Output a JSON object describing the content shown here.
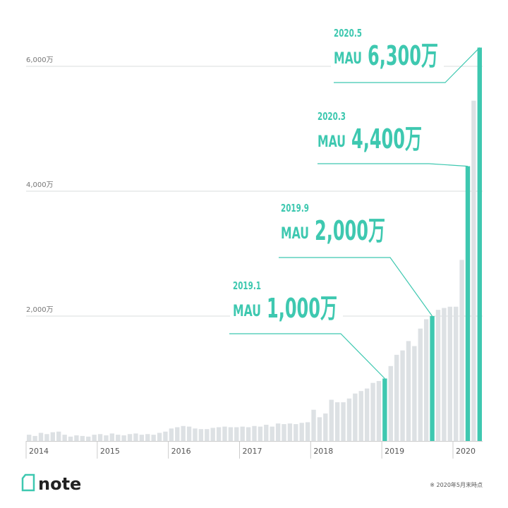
{
  "chart_data": {
    "type": "bar",
    "categories": [
      "2014",
      null,
      null,
      null,
      null,
      null,
      null,
      null,
      null,
      null,
      null,
      null,
      "2015",
      null,
      null,
      null,
      null,
      null,
      null,
      null,
      null,
      null,
      null,
      null,
      "2016",
      null,
      null,
      null,
      null,
      null,
      null,
      null,
      null,
      null,
      null,
      null,
      "2017",
      null,
      null,
      null,
      null,
      null,
      null,
      null,
      null,
      null,
      null,
      null,
      "2018",
      null,
      null,
      null,
      null,
      null,
      null,
      null,
      null,
      null,
      null,
      null,
      "2019",
      null,
      null,
      null,
      null,
      null,
      null,
      null,
      null,
      null,
      null,
      null,
      "2020",
      null,
      null,
      null,
      null
    ],
    "values": [
      100,
      80,
      130,
      110,
      140,
      150,
      100,
      70,
      90,
      80,
      70,
      100,
      110,
      90,
      120,
      100,
      90,
      110,
      120,
      100,
      110,
      100,
      130,
      150,
      200,
      220,
      240,
      230,
      200,
      190,
      190,
      210,
      220,
      230,
      220,
      220,
      230,
      220,
      240,
      230,
      260,
      230,
      280,
      270,
      280,
      270,
      290,
      300,
      500,
      380,
      440,
      660,
      620,
      620,
      680,
      760,
      800,
      840,
      930,
      960,
      1000,
      1200,
      1380,
      1450,
      1600,
      1520,
      1800,
      1950,
      2000,
      2100,
      2130,
      2150,
      2150,
      2900,
      4400,
      5450,
      6300
    ],
    "value_labels": [
      null,
      null,
      null,
      null,
      null,
      null,
      null,
      null,
      null,
      null,
      null,
      null,
      null,
      null,
      null,
      null,
      null,
      null,
      null,
      null,
      null,
      null,
      null,
      null,
      null,
      null,
      null,
      null,
      null,
      null,
      null,
      null,
      null,
      null,
      null,
      null,
      null,
      null,
      null,
      null,
      null,
      null,
      null,
      null,
      null,
      null,
      null,
      null,
      null,
      null,
      null,
      null,
      null,
      null,
      null,
      null,
      null,
      null,
      null,
      null,
      "1,000万",
      null,
      null,
      null,
      null,
      null,
      null,
      null,
      "2,000万",
      null,
      null,
      null,
      null,
      null,
      "4,400万",
      null,
      "6,300万"
    ],
    "label_dates": [
      null,
      null,
      null,
      null,
      null,
      null,
      null,
      null,
      null,
      null,
      null,
      null,
      null,
      null,
      null,
      null,
      null,
      null,
      null,
      null,
      null,
      null,
      null,
      null,
      null,
      null,
      null,
      null,
      null,
      null,
      null,
      null,
      null,
      null,
      null,
      null,
      null,
      null,
      null,
      null,
      null,
      null,
      null,
      null,
      null,
      null,
      null,
      null,
      null,
      null,
      null,
      null,
      null,
      null,
      null,
      null,
      null,
      null,
      null,
      null,
      "2019.1",
      null,
      null,
      null,
      null,
      null,
      null,
      null,
      "2019.9",
      null,
      null,
      null,
      null,
      null,
      "2020.3",
      null,
      "2020.5"
    ],
    "label_prefix": "MAU",
    "color": "#dde1e4",
    "highlight_color": "#3ec8b0",
    "ylim": [
      0,
      7000
    ],
    "yticks": [
      {
        "value": 2000,
        "label": "2,000万"
      },
      {
        "value": 4000,
        "label": "4,000万"
      },
      {
        "value": 6000,
        "label": "6,000万"
      }
    ],
    "grid": true
  },
  "logo": "note",
  "footnote": "※ 2020年5月末時点"
}
